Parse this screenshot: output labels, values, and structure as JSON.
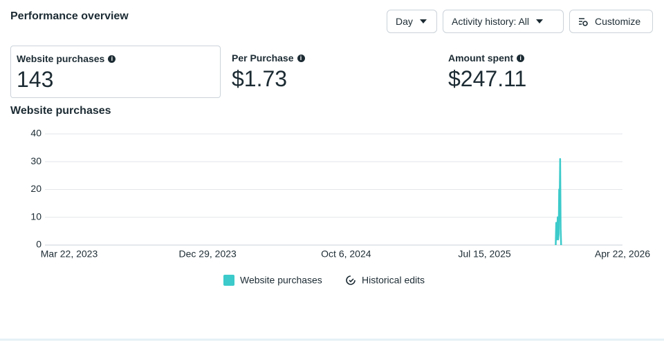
{
  "header": {
    "title": "Performance overview",
    "buttons": [
      "Day",
      "Activity history: All",
      "Customize"
    ]
  },
  "metrics": [
    {
      "label": "Website purchases",
      "value": 143
    },
    {
      "label": "Per Purchase",
      "value": "$1.73"
    },
    {
      "label": "Amount spent",
      "value": "$247.11"
    }
  ],
  "chart_data": {
    "type": "line",
    "title": "Website purchases",
    "x": [
      "Dec 7, 2025",
      "Dec 8, 2025",
      "Dec 9, 2025",
      "Dec 10, 2025",
      "Dec 11, 2025",
      "Dec 12, 2025",
      "Dec 13, 2025",
      "Dec 14, 2025",
      "Dec 15, 2025",
      "Dec 16, 2025",
      "Dec 17, 2025",
      "Dec 18, 2025"
    ],
    "series": [
      {
        "name": "Website purchases",
        "color": "#3ccaca",
        "values": [
          0,
          8,
          2,
          3,
          10,
          2,
          4,
          20,
          14,
          31,
          6,
          0
        ]
      }
    ],
    "xlim": [
      "Mar 22, 2023",
      "Apr 22, 2026"
    ],
    "xticks": [
      "Mar 22, 2023",
      "Dec 29, 2023",
      "Oct 6, 2024",
      "Jul 15, 2025",
      "Apr 22, 2026"
    ],
    "ylim": [
      0,
      40
    ],
    "yticks": [
      0,
      10,
      20,
      30,
      40
    ],
    "grid": true,
    "legend_extra": "Historical edits"
  }
}
